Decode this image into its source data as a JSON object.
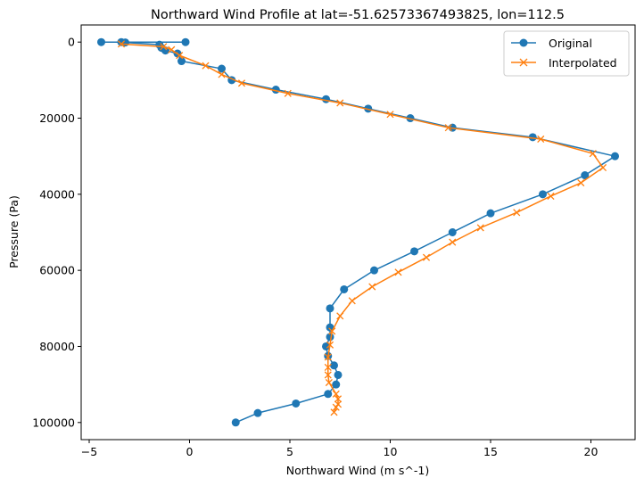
{
  "chart_data": {
    "type": "line",
    "title": "Northward Wind Profile at lat=-51.62573367493825, lon=112.5",
    "xlabel": "Northward Wind (m s^-1)",
    "ylabel": "Pressure (Pa)",
    "xlim": [
      -5.4,
      22.2
    ],
    "ylim": [
      104500,
      -4500
    ],
    "y_inverted": true,
    "grid": false,
    "legend_position": "top-right",
    "x_ticks": [
      -5,
      0,
      5,
      10,
      15,
      20
    ],
    "y_ticks": [
      0,
      20000,
      40000,
      60000,
      80000,
      100000
    ],
    "series": [
      {
        "name": "Original",
        "color": "#1f77b4",
        "marker": "circle",
        "x": [
          -0.2,
          -4.4,
          -3.4,
          -3.2,
          -1.5,
          -1.4,
          -1.2,
          -0.6,
          -0.4,
          1.6,
          2.1,
          4.3,
          6.8,
          8.9,
          11.0,
          13.1,
          17.1,
          21.2,
          19.7,
          17.6,
          15.0,
          13.1,
          11.2,
          9.2,
          7.7,
          7.0,
          7.0,
          7.0,
          6.8,
          6.9,
          7.2,
          7.4,
          7.3,
          6.9,
          5.3,
          3.4,
          2.3
        ],
        "y": [
          0,
          0,
          0,
          100,
          700,
          1500,
          2200,
          3000,
          5000,
          7000,
          10000,
          12500,
          15000,
          17500,
          20000,
          22500,
          25000,
          30000,
          35000,
          40000,
          45000,
          50000,
          55000,
          60000,
          65000,
          70000,
          75000,
          77500,
          80000,
          82500,
          85000,
          87500,
          90000,
          92500,
          95000,
          97500,
          100000
        ]
      },
      {
        "name": "Interpolated",
        "color": "#ff7f0e",
        "marker": "x",
        "x": [
          -3.4,
          -1.3,
          -0.9,
          -0.5,
          0.8,
          1.6,
          2.6,
          4.9,
          7.5,
          10.0,
          12.9,
          17.5,
          20.1,
          20.6,
          19.5,
          18.0,
          16.3,
          14.5,
          13.1,
          11.8,
          10.4,
          9.1,
          8.1,
          7.5,
          7.1,
          7.0,
          6.9,
          6.9,
          6.9,
          6.95,
          7.3,
          7.4,
          7.4,
          7.3,
          7.2
        ],
        "y": [
          500,
          1200,
          2000,
          3500,
          6200,
          8500,
          10800,
          13500,
          16000,
          19000,
          22500,
          25500,
          29300,
          33000,
          37000,
          40500,
          44800,
          48800,
          52600,
          56600,
          60500,
          64300,
          68000,
          72000,
          76000,
          79600,
          82800,
          85500,
          87500,
          89500,
          92500,
          93800,
          95200,
          96000,
          97300
        ]
      }
    ]
  }
}
